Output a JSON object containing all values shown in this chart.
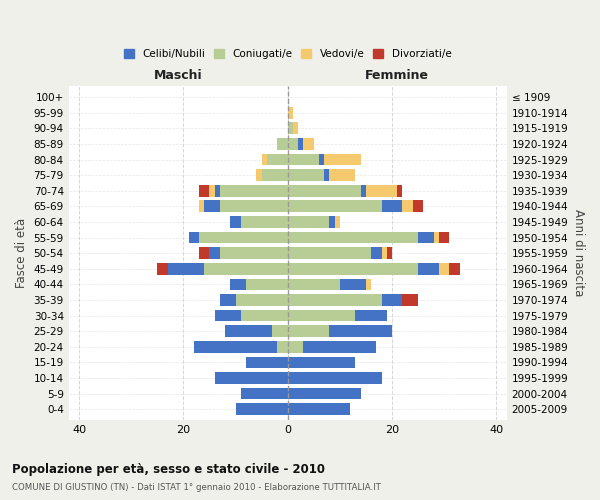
{
  "age_groups": [
    "100+",
    "95-99",
    "90-94",
    "85-89",
    "80-84",
    "75-79",
    "70-74",
    "65-69",
    "60-64",
    "55-59",
    "50-54",
    "45-49",
    "40-44",
    "35-39",
    "30-34",
    "25-29",
    "20-24",
    "15-19",
    "10-14",
    "5-9",
    "0-4"
  ],
  "birth_years": [
    "≤ 1909",
    "1910-1914",
    "1915-1919",
    "1920-1924",
    "1925-1929",
    "1930-1934",
    "1935-1939",
    "1940-1944",
    "1945-1949",
    "1950-1954",
    "1955-1959",
    "1960-1964",
    "1965-1969",
    "1970-1974",
    "1975-1979",
    "1980-1984",
    "1985-1989",
    "1990-1994",
    "1995-1999",
    "2000-2004",
    "2005-2009"
  ],
  "colors": {
    "celibi": "#4472c4",
    "coniugati": "#b8cc96",
    "vedovi": "#f5c96e",
    "divorziati": "#c0392b"
  },
  "males": {
    "celibi": [
      0,
      0,
      0,
      0,
      0,
      0,
      1,
      3,
      2,
      2,
      2,
      7,
      3,
      3,
      5,
      9,
      16,
      8,
      14,
      9,
      10
    ],
    "coniugati": [
      0,
      0,
      0,
      2,
      4,
      5,
      13,
      13,
      9,
      17,
      13,
      16,
      8,
      10,
      9,
      3,
      2,
      0,
      0,
      0,
      0
    ],
    "vedovi": [
      0,
      0,
      0,
      0,
      1,
      1,
      1,
      1,
      0,
      0,
      0,
      0,
      0,
      0,
      0,
      0,
      0,
      0,
      0,
      0,
      0
    ],
    "divorziati": [
      0,
      0,
      0,
      0,
      0,
      0,
      2,
      0,
      0,
      0,
      2,
      2,
      0,
      0,
      0,
      0,
      0,
      0,
      0,
      0,
      0
    ]
  },
  "females": {
    "celibi": [
      0,
      0,
      0,
      1,
      1,
      1,
      1,
      4,
      1,
      3,
      2,
      4,
      5,
      4,
      6,
      12,
      14,
      13,
      18,
      14,
      12
    ],
    "coniugati": [
      0,
      0,
      1,
      2,
      6,
      7,
      14,
      18,
      8,
      25,
      16,
      25,
      10,
      18,
      13,
      8,
      3,
      0,
      0,
      0,
      0
    ],
    "vedovi": [
      0,
      1,
      1,
      2,
      7,
      5,
      6,
      2,
      1,
      1,
      1,
      2,
      1,
      0,
      0,
      0,
      0,
      0,
      0,
      0,
      0
    ],
    "divorziati": [
      0,
      0,
      0,
      0,
      0,
      0,
      1,
      2,
      0,
      2,
      1,
      2,
      0,
      3,
      0,
      0,
      0,
      0,
      0,
      0,
      0
    ]
  },
  "xlim": [
    -42,
    42
  ],
  "xticks": [
    -40,
    -20,
    0,
    20,
    40
  ],
  "xticklabels": [
    "40",
    "20",
    "0",
    "20",
    "40"
  ],
  "title": "Popolazione per età, sesso e stato civile - 2010",
  "subtitle": "COMUNE DI GIUSTINO (TN) - Dati ISTAT 1° gennaio 2010 - Elaborazione TUTTITALIA.IT",
  "ylabel_left": "Fasce di età",
  "ylabel_right": "Anni di nascita",
  "legend_labels": [
    "Celibi/Nubili",
    "Coniugati/e",
    "Vedovi/e",
    "Divorziati/e"
  ],
  "maschi_label": "Maschi",
  "femmine_label": "Femmine",
  "bg_color": "#f0f0eb",
  "plot_bg_color": "#ffffff"
}
